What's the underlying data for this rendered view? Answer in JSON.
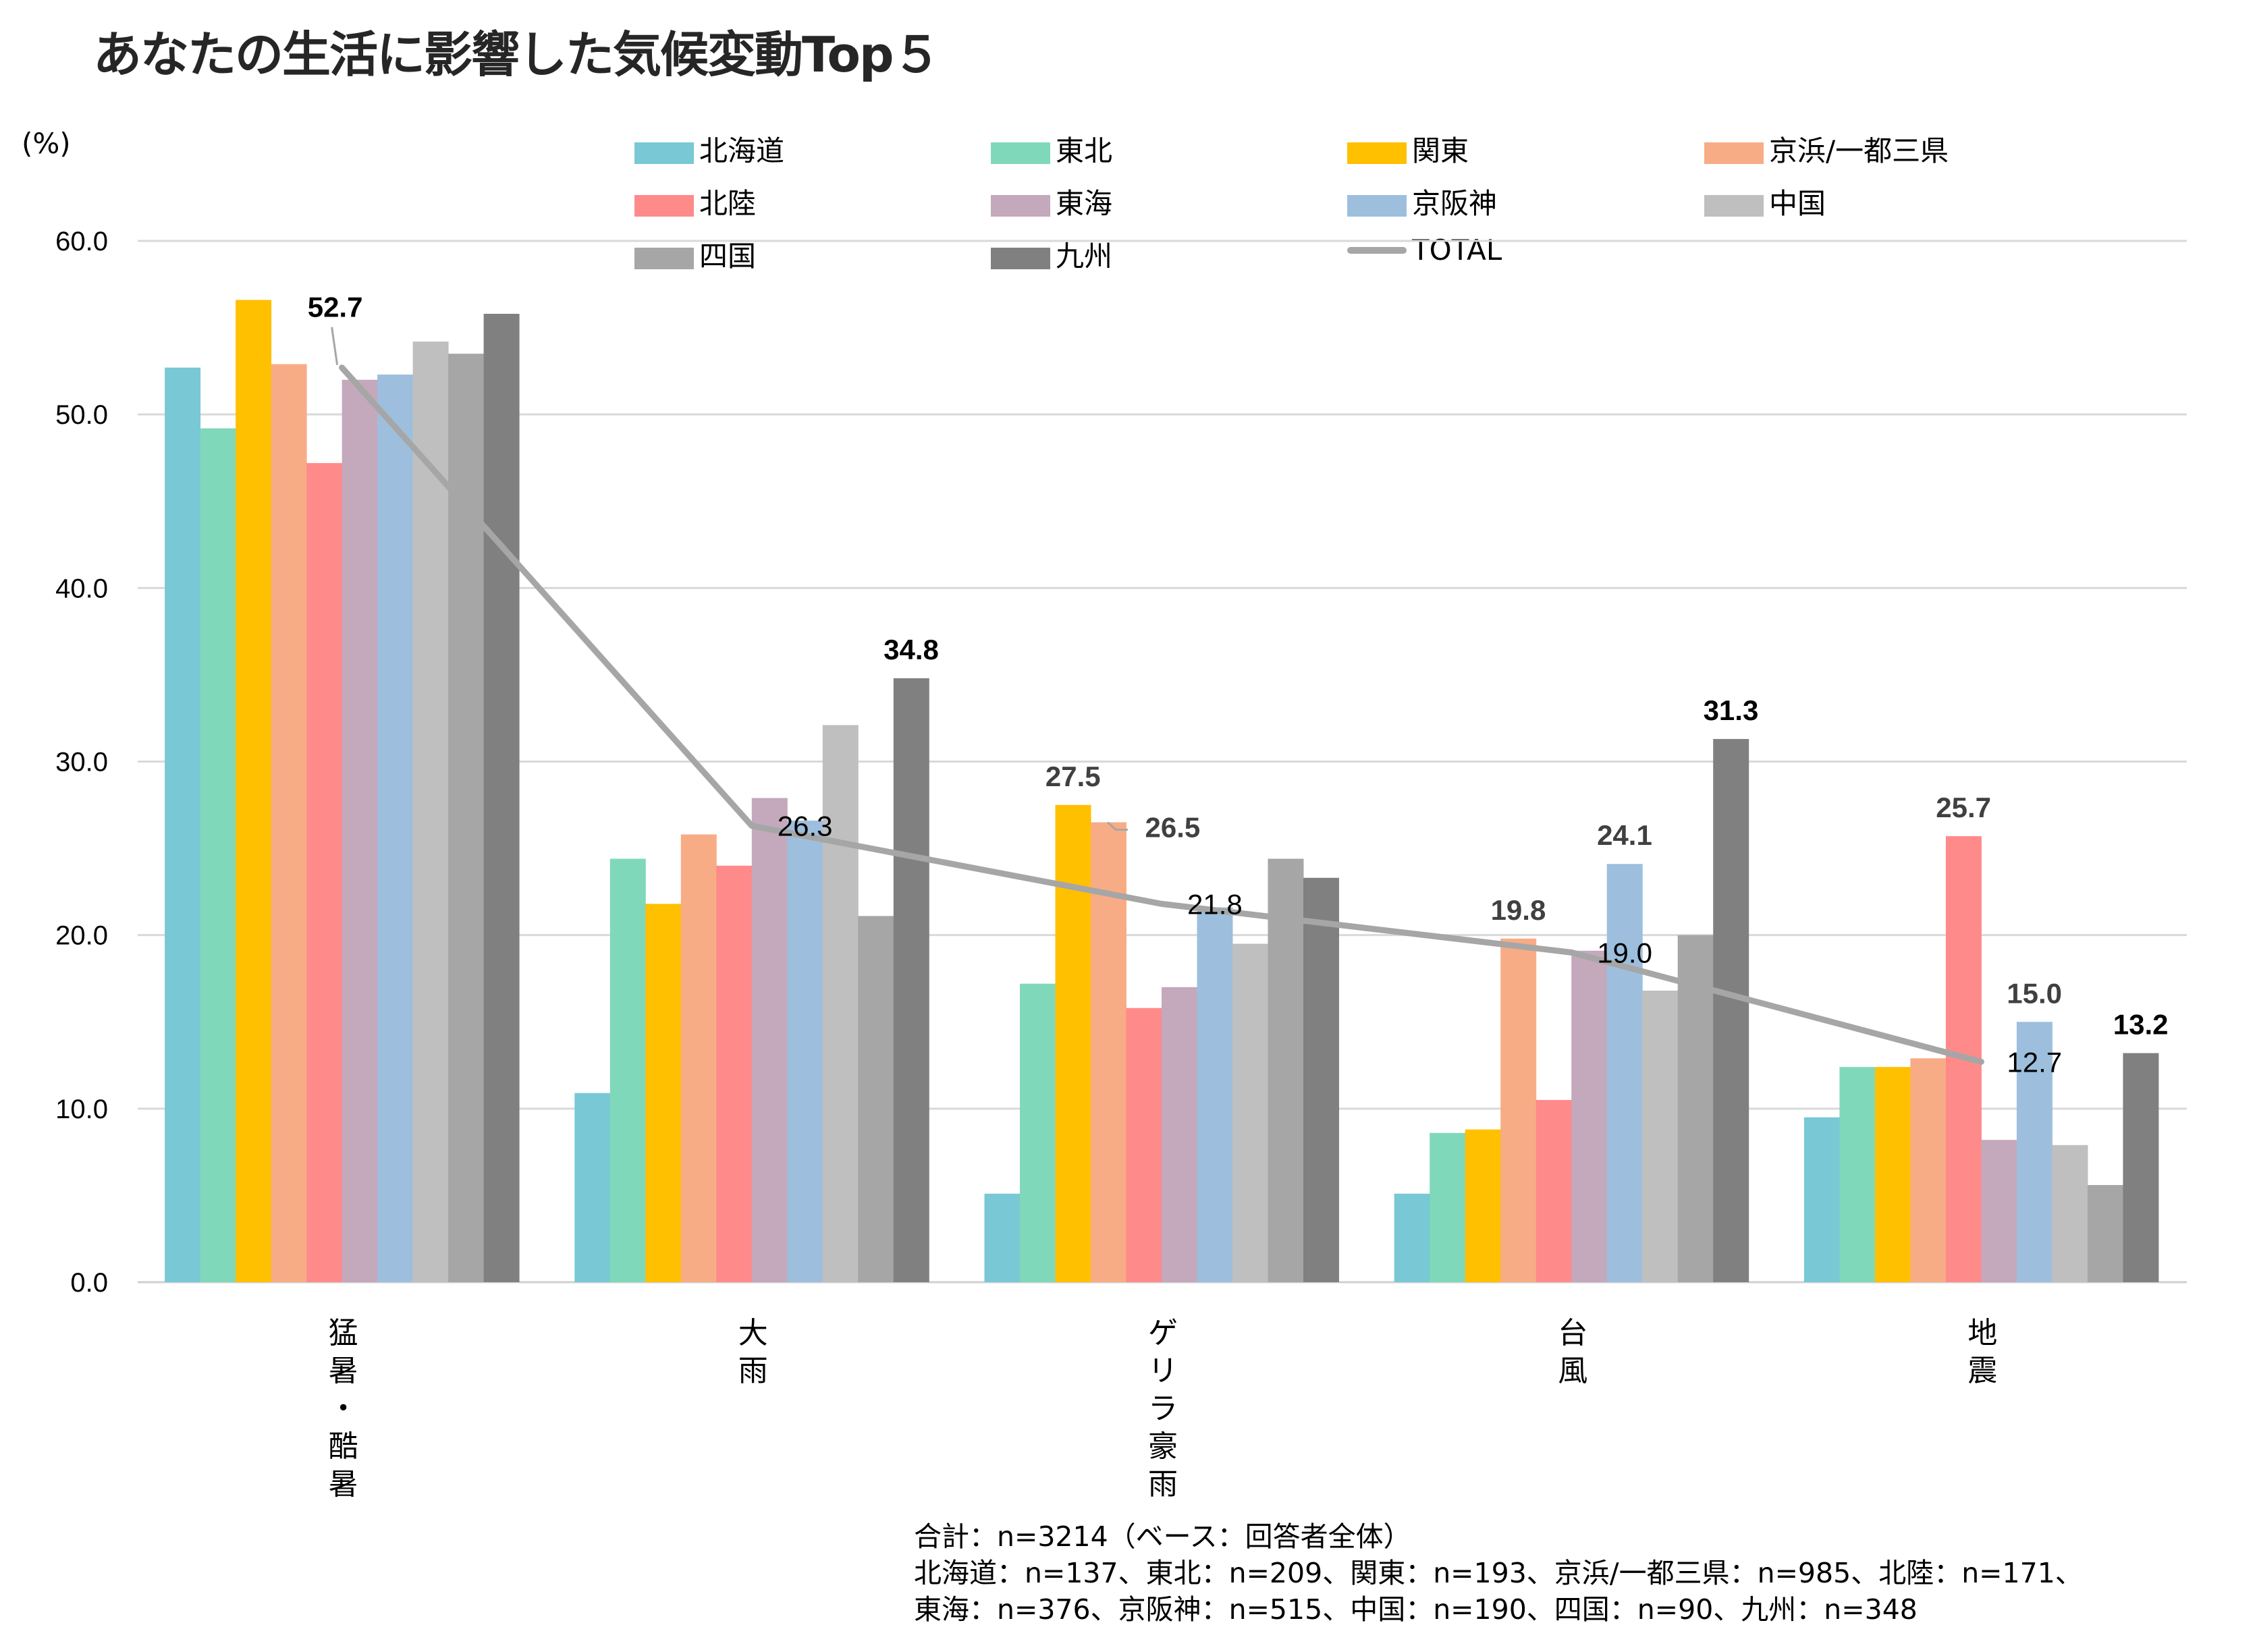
{
  "title": "あなたの生活に影響した気候変動Top５",
  "unit_label": "(%)",
  "footnote": [
    "合計：n=3214（ベース：回答者全体）",
    "北海道：n=137、東北：n=209、関東：n=193、京浜/一都三県：n=985、北陸：n=171、",
    "東海：n=376、京阪神：n=515、中国：n=190、四国：n=90、九州：n=348"
  ],
  "chart_data": {
    "type": "bar",
    "title": "あなたの生活に影響した気候変動Top５",
    "xlabel": "",
    "ylabel": "(%)",
    "ylim": [
      0,
      60
    ],
    "yticks": [
      "0.0",
      "10.0",
      "20.0",
      "30.0",
      "40.0",
      "50.0",
      "60.0"
    ],
    "grid": true,
    "legend_position": "top",
    "categories": [
      "猛暑・酷暑",
      "大雨",
      "ゲリラ豪雨",
      "台風",
      "地震"
    ],
    "series": [
      {
        "name": "北海道",
        "color": "#78C8D6",
        "values": [
          52.7,
          10.9,
          5.1,
          5.1,
          9.5
        ]
      },
      {
        "name": "東北",
        "color": "#80D8BA",
        "values": [
          49.2,
          24.4,
          17.2,
          8.6,
          12.4
        ]
      },
      {
        "name": "関東",
        "color": "#FFC000",
        "values": [
          56.6,
          21.8,
          27.5,
          8.8,
          12.4
        ]
      },
      {
        "name": "京浜/一都三県",
        "color": "#F7AC86",
        "values": [
          52.9,
          25.8,
          26.5,
          19.8,
          12.9
        ]
      },
      {
        "name": "北陸",
        "color": "#FF8A8A",
        "values": [
          47.2,
          24.0,
          15.8,
          10.5,
          25.7
        ]
      },
      {
        "name": "東海",
        "color": "#C4A8BC",
        "values": [
          52.0,
          27.9,
          17.0,
          19.1,
          8.2
        ]
      },
      {
        "name": "京阪神",
        "color": "#9DBFDD",
        "values": [
          52.3,
          26.6,
          21.6,
          24.1,
          15.0
        ]
      },
      {
        "name": "中国",
        "color": "#BFBFBF",
        "values": [
          54.2,
          32.1,
          19.5,
          16.8,
          7.9
        ]
      },
      {
        "name": "四国",
        "color": "#A6A6A6",
        "values": [
          53.5,
          21.1,
          24.4,
          20.0,
          5.6
        ]
      },
      {
        "name": "九州",
        "color": "#808080",
        "values": [
          55.8,
          34.8,
          23.3,
          31.3,
          13.2
        ]
      }
    ],
    "line_series": {
      "name": "TOTAL",
      "color": "#A6A6A6",
      "values": [
        52.7,
        26.3,
        21.8,
        19.0,
        12.7
      ]
    },
    "data_labels": [
      {
        "series": "TOTAL",
        "category": "猛暑・酷暑",
        "text": "52.7",
        "style": "bold-black"
      },
      {
        "series": "TOTAL",
        "category": "大雨",
        "text": "26.3",
        "style": "regular"
      },
      {
        "series": "TOTAL",
        "category": "ゲリラ豪雨",
        "text": "21.8",
        "style": "regular"
      },
      {
        "series": "TOTAL",
        "category": "台風",
        "text": "19.0",
        "style": "regular"
      },
      {
        "series": "TOTAL",
        "category": "地震",
        "text": "12.7",
        "style": "regular"
      },
      {
        "series": "九州",
        "category": "大雨",
        "text": "34.8",
        "style": "bold-black"
      },
      {
        "series": "関東",
        "category": "ゲリラ豪雨",
        "text": "27.5",
        "style": "bold-gray"
      },
      {
        "series": "京浜/一都三県",
        "category": "ゲリラ豪雨",
        "text": "26.5",
        "style": "bold-gray"
      },
      {
        "series": "京浜/一都三県",
        "category": "台風",
        "text": "19.8",
        "style": "bold-gray"
      },
      {
        "series": "京阪神",
        "category": "台風",
        "text": "24.1",
        "style": "bold-gray"
      },
      {
        "series": "九州",
        "category": "台風",
        "text": "31.3",
        "style": "bold-black"
      },
      {
        "series": "北陸",
        "category": "地震",
        "text": "25.7",
        "style": "bold-gray"
      },
      {
        "series": "京阪神",
        "category": "地震",
        "text": "15.0",
        "style": "bold-gray"
      },
      {
        "series": "九州",
        "category": "地震",
        "text": "13.2",
        "style": "bold-black"
      }
    ]
  }
}
